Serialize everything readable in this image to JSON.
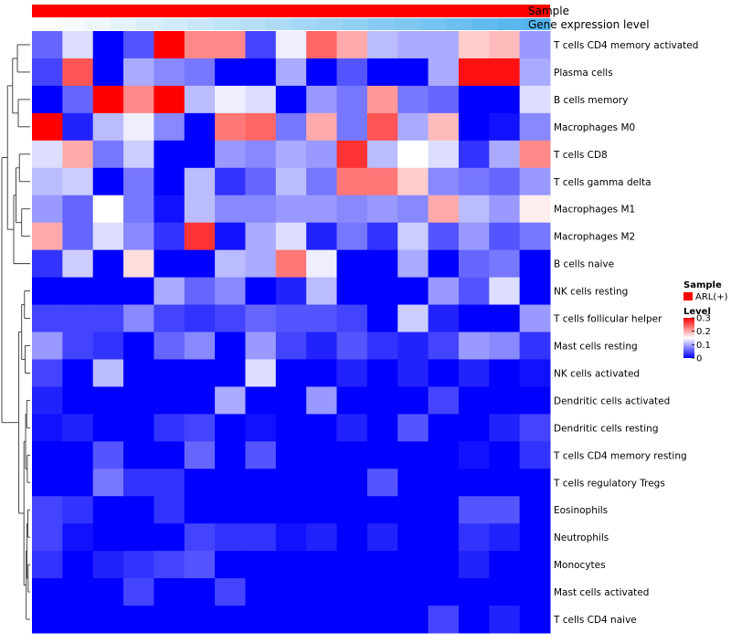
{
  "chart_data": {
    "type": "heatmap",
    "title": "",
    "color_scale": {
      "low": "#0000FF",
      "mid": "#FFFFFF",
      "high": "#FF0000",
      "min": 0,
      "mid_value": 0.15,
      "max": 0.3
    },
    "annotation_tracks": [
      {
        "name": "Sample",
        "color": "#FF0000"
      },
      {
        "name": "Gene expression level",
        "colors": [
          "#FFFFFF",
          "#F7FBFE",
          "#EEF7FD",
          "#E4F3FC",
          "#DBEFFB",
          "#D2EBFA",
          "#C9E7F9",
          "#BFE3F8",
          "#B6DFF7",
          "#ADDBF6",
          "#A3D7F5",
          "#9AD3F4",
          "#91CFF3",
          "#88CBF2",
          "#7EC7F1",
          "#75C3F0",
          "#6CBFEF",
          "#62BBEE",
          "#59B7ED",
          "#50B3EC"
        ]
      }
    ],
    "rows": [
      "T cells CD4 memory activated",
      "Plasma cells",
      "B cells memory",
      "Macrophages M0",
      "T cells CD8",
      "T cells gamma delta",
      "Macrophages M1",
      "Macrophages M2",
      "B cells naive",
      "NK cells resting",
      "T cells follicular helper",
      "Mast cells resting",
      "NK cells activated",
      "Dendritic cells activated",
      "Dendritic cells resting",
      "T cells CD4 memory resting",
      "T cells regulatory  Tregs",
      "Eosinophils",
      "Neutrophils",
      "Monocytes",
      "Mast cells activated",
      "T cells CD4 naive"
    ],
    "values": [
      [
        0.06,
        0.13,
        0.0,
        0.05,
        0.3,
        0.22,
        0.22,
        0.04,
        0.14,
        0.24,
        0.2,
        0.11,
        0.1,
        0.1,
        0.18,
        0.19,
        0.09
      ],
      [
        0.04,
        0.25,
        0.0,
        0.1,
        0.08,
        0.07,
        0.0,
        0.0,
        0.1,
        0.0,
        0.05,
        0.0,
        0.0,
        0.1,
        0.29,
        0.29,
        0.1
      ],
      [
        0.0,
        0.06,
        0.3,
        0.22,
        0.3,
        0.11,
        0.14,
        0.13,
        0.0,
        0.09,
        0.07,
        0.21,
        0.07,
        0.06,
        0.0,
        0.0,
        0.13
      ],
      [
        0.3,
        0.02,
        0.11,
        0.14,
        0.08,
        0.0,
        0.23,
        0.24,
        0.07,
        0.2,
        0.07,
        0.25,
        0.1,
        0.19,
        0.0,
        0.01,
        0.08
      ],
      [
        0.13,
        0.2,
        0.07,
        0.12,
        0.0,
        0.0,
        0.09,
        0.08,
        0.1,
        0.09,
        0.27,
        0.11,
        0.15,
        0.13,
        0.03,
        0.1,
        0.22
      ],
      [
        0.11,
        0.12,
        0.0,
        0.07,
        0.0,
        0.11,
        0.03,
        0.06,
        0.11,
        0.07,
        0.23,
        0.23,
        0.18,
        0.08,
        0.07,
        0.06,
        0.09
      ],
      [
        0.09,
        0.06,
        0.15,
        0.07,
        0.01,
        0.11,
        0.08,
        0.08,
        0.09,
        0.09,
        0.08,
        0.09,
        0.08,
        0.2,
        0.11,
        0.09,
        0.16
      ],
      [
        0.2,
        0.06,
        0.13,
        0.08,
        0.03,
        0.27,
        0.01,
        0.1,
        0.13,
        0.02,
        0.07,
        0.03,
        0.12,
        0.05,
        0.09,
        0.05,
        0.07
      ],
      [
        0.03,
        0.12,
        0.0,
        0.17,
        0.0,
        0.0,
        0.11,
        0.1,
        0.23,
        0.14,
        0.0,
        0.0,
        0.1,
        0.0,
        0.06,
        0.07,
        0.0
      ],
      [
        0.0,
        0.0,
        0.0,
        0.0,
        0.1,
        0.06,
        0.08,
        0.0,
        0.02,
        0.11,
        0.0,
        0.0,
        0.0,
        0.09,
        0.05,
        0.13,
        0.0
      ],
      [
        0.04,
        0.04,
        0.04,
        0.08,
        0.04,
        0.03,
        0.04,
        0.06,
        0.05,
        0.05,
        0.04,
        0.0,
        0.12,
        0.02,
        0.0,
        0.0,
        0.09
      ],
      [
        0.09,
        0.04,
        0.03,
        0.0,
        0.06,
        0.08,
        0.0,
        0.09,
        0.04,
        0.02,
        0.05,
        0.03,
        0.02,
        0.04,
        0.09,
        0.08,
        0.03
      ],
      [
        0.04,
        0.0,
        0.11,
        0.0,
        0.0,
        0.0,
        0.0,
        0.13,
        0.0,
        0.0,
        0.02,
        0.0,
        0.02,
        0.0,
        0.02,
        0.0,
        0.01
      ],
      [
        0.02,
        0.0,
        0.0,
        0.0,
        0.0,
        0.0,
        0.1,
        0.0,
        0.0,
        0.09,
        0.0,
        0.0,
        0.0,
        0.04,
        0.0,
        0.0,
        0.0
      ],
      [
        0.01,
        0.02,
        0.0,
        0.0,
        0.03,
        0.04,
        0.0,
        0.01,
        0.0,
        0.0,
        0.02,
        0.0,
        0.05,
        0.0,
        0.0,
        0.02,
        0.04
      ],
      [
        0.0,
        0.0,
        0.05,
        0.0,
        0.0,
        0.06,
        0.0,
        0.05,
        0.0,
        0.0,
        0.0,
        0.0,
        0.0,
        0.0,
        0.01,
        0.0,
        0.03
      ],
      [
        0.0,
        0.0,
        0.07,
        0.03,
        0.03,
        0.0,
        0.0,
        0.0,
        0.0,
        0.0,
        0.0,
        0.05,
        0.0,
        0.0,
        0.0,
        0.0,
        0.0
      ],
      [
        0.04,
        0.03,
        0.0,
        0.0,
        0.03,
        0.0,
        0.0,
        0.0,
        0.0,
        0.0,
        0.0,
        0.0,
        0.0,
        0.0,
        0.05,
        0.05,
        0.0
      ],
      [
        0.04,
        0.01,
        0.0,
        0.0,
        0.0,
        0.04,
        0.03,
        0.03,
        0.01,
        0.02,
        0.0,
        0.02,
        0.0,
        0.0,
        0.03,
        0.02,
        0.0
      ],
      [
        0.03,
        0.0,
        0.02,
        0.03,
        0.04,
        0.05,
        0.0,
        0.0,
        0.0,
        0.0,
        0.0,
        0.0,
        0.0,
        0.0,
        0.02,
        0.0,
        0.0
      ],
      [
        0.0,
        0.0,
        0.0,
        0.04,
        0.0,
        0.0,
        0.04,
        0.0,
        0.0,
        0.0,
        0.0,
        0.0,
        0.0,
        0.0,
        0.0,
        0.0,
        0.0
      ],
      [
        0.0,
        0.0,
        0.0,
        0.0,
        0.0,
        0.0,
        0.0,
        0.0,
        0.0,
        0.0,
        0.0,
        0.0,
        0.0,
        0.04,
        0.0,
        0.02,
        0.0
      ]
    ],
    "legend": {
      "sample_title": "Sample",
      "sample_entry": "ARL(+)",
      "level_title": "Level",
      "level_ticks": [
        0.3,
        0.2,
        0.1,
        0
      ]
    },
    "dendrogram": {
      "side": "left",
      "description_note": "hierarchical clustering of rows",
      "merges": [
        [
          0,
          1,
          0.95
        ],
        [
          2,
          3,
          0.9
        ],
        [
          4,
          5,
          0.8
        ],
        [
          6,
          7,
          0.7
        ],
        [
          8,
          9,
          0.6
        ],
        [
          10,
          11,
          0.45
        ],
        [
          12,
          13,
          0.4
        ],
        [
          14,
          15,
          0.35
        ],
        [
          16,
          17,
          0.25
        ],
        [
          18,
          19,
          0.2
        ],
        [
          20,
          21,
          0.1
        ]
      ]
    }
  }
}
